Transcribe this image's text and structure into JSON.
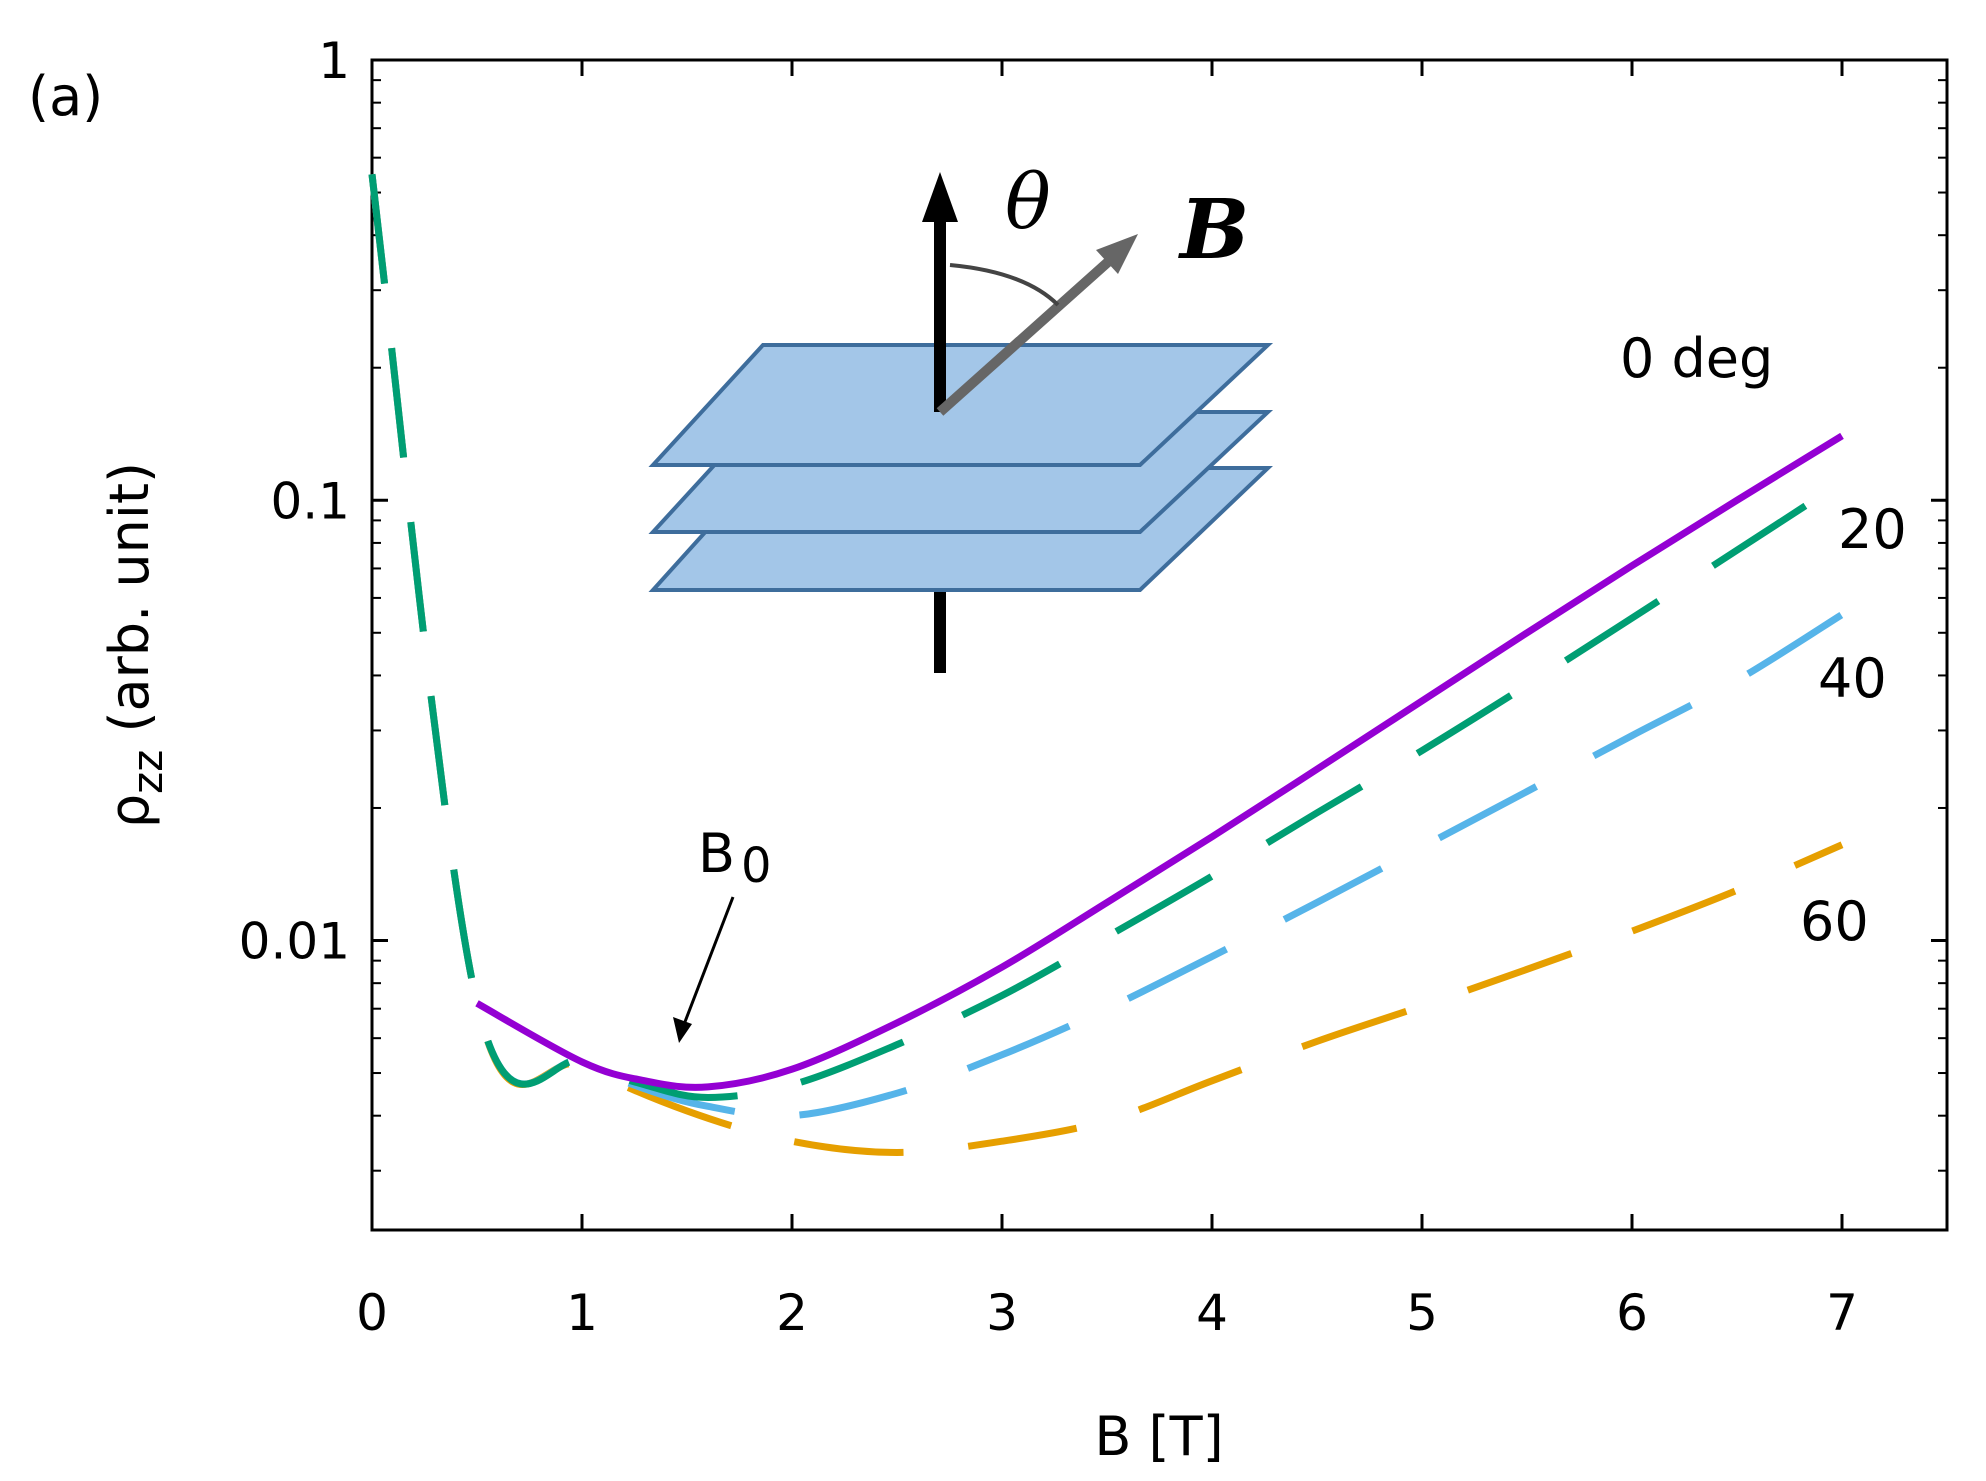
{
  "chart_data": {
    "type": "line",
    "panel_label": "(a)",
    "xlabel": "B [T]",
    "ylabel": {
      "symbol": "ρ",
      "subscript": "zz",
      "rest": " (arb. unit)"
    },
    "xlim": [
      0,
      7.5
    ],
    "ylim": [
      0.0022,
      1
    ],
    "yscale": "log",
    "grid": false,
    "x_ticks": [
      {
        "value": 0,
        "label": "0"
      },
      {
        "value": 1,
        "label": "1"
      },
      {
        "value": 2,
        "label": "2"
      },
      {
        "value": 3,
        "label": "3"
      },
      {
        "value": 4,
        "label": "4"
      },
      {
        "value": 5,
        "label": "5"
      },
      {
        "value": 6,
        "label": "6"
      },
      {
        "value": 7,
        "label": "7"
      }
    ],
    "y_ticks": [
      {
        "value": 1,
        "label": "1"
      },
      {
        "value": 0.1,
        "label": "0.1"
      },
      {
        "value": 0.01,
        "label": "0.01"
      }
    ],
    "series": [
      {
        "name": "0 deg",
        "color": "#9400d3",
        "dash": "solid",
        "x": [
          0.5,
          1.0,
          1.3,
          1.6,
          2.0,
          2.5,
          3.0,
          3.5,
          4.0,
          4.5,
          5.0,
          5.5,
          6.0,
          6.5,
          7.0
        ],
        "y": [
          0.0072,
          0.0053,
          0.0048,
          0.00465,
          0.0051,
          0.0065,
          0.0087,
          0.0122,
          0.0172,
          0.0245,
          0.035,
          0.05,
          0.071,
          0.1,
          0.14
        ]
      },
      {
        "name": "20",
        "color": "#009e73",
        "dash": "long-dash",
        "x": [
          0.0,
          0.5,
          1.0,
          1.3,
          1.6,
          2.0,
          2.5,
          3.0,
          3.5,
          4.0,
          4.5,
          5.0,
          5.5,
          6.0,
          6.5,
          7.0
        ],
        "y": [
          0.55,
          0.0072,
          0.0053,
          0.0047,
          0.0044,
          0.0047,
          0.0058,
          0.0075,
          0.0102,
          0.014,
          0.0195,
          0.027,
          0.038,
          0.054,
          0.077,
          0.11
        ]
      },
      {
        "name": "40",
        "color": "#56b4e9",
        "dash": "long-dash",
        "x": [
          0.0,
          0.5,
          1.0,
          1.3,
          1.6,
          2.0,
          2.5,
          3.0,
          3.5,
          4.0,
          4.5,
          5.0,
          5.5,
          6.0,
          6.5,
          7.0
        ],
        "y": [
          0.55,
          0.0072,
          0.0053,
          0.0046,
          0.0042,
          0.004,
          0.0045,
          0.0055,
          0.007,
          0.0092,
          0.0122,
          0.0163,
          0.0218,
          0.0292,
          0.039,
          0.055
        ]
      },
      {
        "name": "60",
        "color": "#e69f00",
        "dash": "long-dash",
        "x": [
          0.0,
          0.5,
          1.0,
          1.5,
          2.0,
          2.5,
          3.0,
          3.5,
          4.0,
          4.5,
          5.0,
          5.5,
          6.0,
          6.5,
          7.0
        ],
        "y": [
          0.55,
          0.0072,
          0.0052,
          0.0041,
          0.0035,
          0.0033,
          0.0035,
          0.0039,
          0.0048,
          0.0059,
          0.0071,
          0.0086,
          0.0105,
          0.013,
          0.0165
        ]
      }
    ],
    "curve_labels": [
      {
        "series": "0 deg",
        "text": "0 deg"
      },
      {
        "series": "20",
        "text": "20"
      },
      {
        "series": "40",
        "text": "40"
      },
      {
        "series": "60",
        "text": "60"
      }
    ],
    "annotations": [
      {
        "text": "B",
        "subscript": "0",
        "points_to": {
          "x": 1.5,
          "y": 0.0047
        }
      }
    ],
    "inset": {
      "description_labels": {
        "angle": "θ",
        "field": "B"
      },
      "colors": {
        "plane_fill": "#a3c6e8",
        "plane_edge": "#3e6d9c",
        "field_arrow": "#666666",
        "axis_arrow": "#000000"
      }
    }
  }
}
